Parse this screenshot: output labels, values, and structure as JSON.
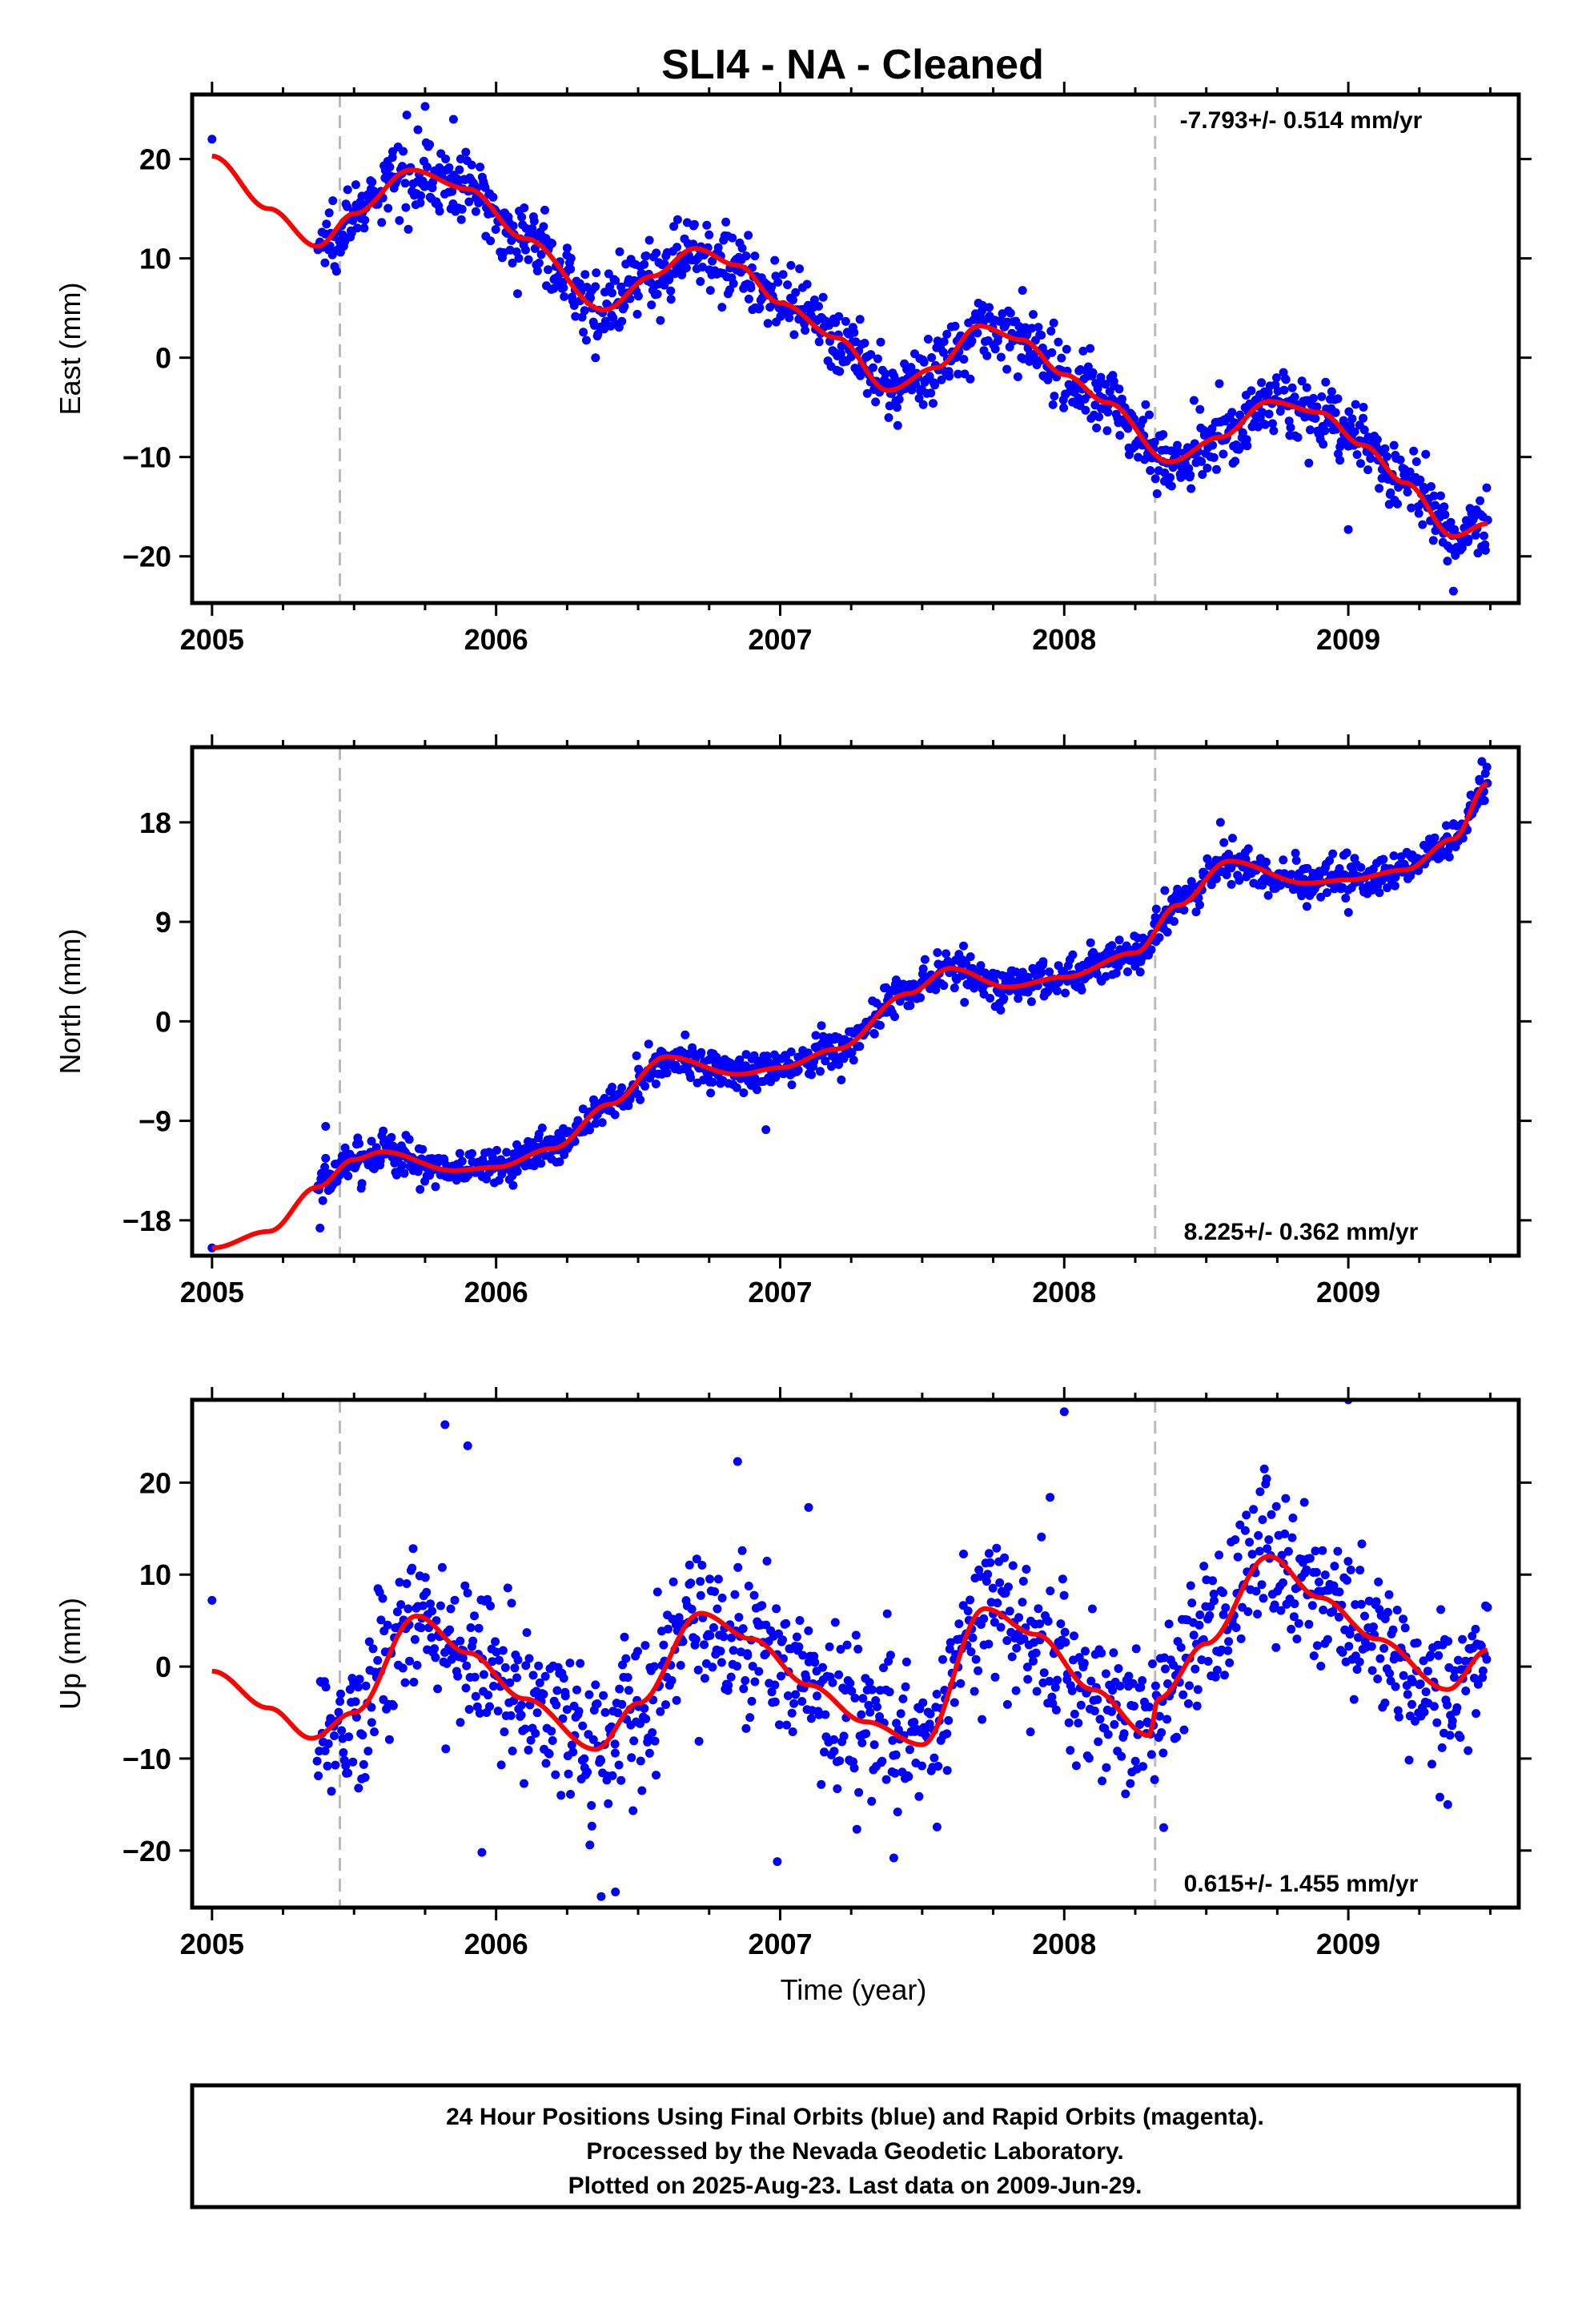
{
  "colors": {
    "points": "#0000ff",
    "model": "#ff0000",
    "event_line": "#bbbbbb",
    "frame": "#000000"
  },
  "footer": {
    "line1": "24 Hour Positions Using Final Orbits (blue) and Rapid Orbits (magenta).",
    "line2": "Processed by the Nevada Geodetic Laboratory.",
    "line3": "Plotted on 2025-Aug-23. Last data on 2009-Jun-29."
  },
  "chart_data": [
    {
      "type": "scatter",
      "title": "SLI4  - NA - Cleaned",
      "ylabel": "East (mm)",
      "xlabel": "",
      "rate_label": "-7.793+/- 0.514 mm/yr",
      "rate_position": "top-right",
      "xlim": [
        2004.93,
        2009.6
      ],
      "ylim": [
        -24.7,
        26.5
      ],
      "xticks": [
        2005,
        2006,
        2007,
        2008,
        2009
      ],
      "xtick_labels": [
        "2005",
        "2006",
        "2007",
        "2008",
        "2009"
      ],
      "yticks": [
        -20,
        -10,
        0,
        10,
        20
      ],
      "ytick_labels": [
        "−20",
        "−10",
        "0",
        "10",
        "20"
      ],
      "event_lines": [
        2005.45,
        2008.32
      ],
      "data_start": 2005.37,
      "data_end": 2009.49,
      "series": [
        {
          "kind": "model",
          "x": [
            2005.0,
            2005.2,
            2005.37,
            2005.5,
            2005.7,
            2005.9,
            2006.1,
            2006.38,
            2006.55,
            2006.7,
            2006.85,
            2007.0,
            2007.2,
            2007.38,
            2007.55,
            2007.7,
            2007.85,
            2008.0,
            2008.15,
            2008.37,
            2008.55,
            2008.72,
            2008.9,
            2009.05,
            2009.2,
            2009.37,
            2009.49
          ],
          "y": [
            20.3,
            15.0,
            11.2,
            14.5,
            18.9,
            17.0,
            12.0,
            4.8,
            8.2,
            11.0,
            9.3,
            5.5,
            2.0,
            -3.3,
            -1.0,
            3.2,
            1.8,
            -1.7,
            -4.5,
            -10.5,
            -8.0,
            -4.4,
            -5.5,
            -8.8,
            -12.6,
            -18.0,
            -16.7
          ]
        },
        {
          "kind": "data",
          "noise": 1.7,
          "n": 1250,
          "outliers": [
            [
              2005.0,
              22.0
            ],
            [
              2005.85,
              24.0
            ],
            [
              2005.75,
              25.3
            ],
            [
              2009.37,
              -23.5
            ],
            [
              2006.35,
              0.0
            ],
            [
              2009.0,
              -17.3
            ]
          ]
        }
      ]
    },
    {
      "type": "scatter",
      "title": "",
      "ylabel": "North (mm)",
      "xlabel": "",
      "rate_label": "8.225+/- 0.362 mm/yr",
      "rate_position": "bottom-right",
      "xlim": [
        2004.93,
        2009.6
      ],
      "ylim": [
        -21.2,
        24.8
      ],
      "xticks": [
        2005,
        2006,
        2007,
        2008,
        2009
      ],
      "xtick_labels": [
        "2005",
        "2006",
        "2007",
        "2008",
        "2009"
      ],
      "yticks": [
        -18,
        -9,
        0,
        9,
        18
      ],
      "ytick_labels": [
        "−18",
        "−9",
        "0",
        "9",
        "18"
      ],
      "event_lines": [
        2005.45,
        2008.32
      ],
      "data_start": 2005.37,
      "data_end": 2009.49,
      "series": [
        {
          "kind": "model",
          "x": [
            2005.0,
            2005.2,
            2005.37,
            2005.5,
            2005.6,
            2005.85,
            2006.0,
            2006.2,
            2006.4,
            2006.6,
            2006.85,
            2007.0,
            2007.2,
            2007.45,
            2007.6,
            2007.8,
            2008.0,
            2008.25,
            2008.4,
            2008.58,
            2008.85,
            2009.0,
            2009.2,
            2009.37,
            2009.49
          ],
          "y": [
            -20.5,
            -19.0,
            -15.0,
            -12.5,
            -11.8,
            -13.5,
            -13.2,
            -11.5,
            -7.5,
            -3.2,
            -4.8,
            -4.2,
            -2.5,
            2.5,
            4.8,
            3.1,
            4.0,
            6.2,
            10.5,
            14.5,
            12.5,
            12.8,
            13.7,
            16.5,
            21.5
          ]
        },
        {
          "kind": "data",
          "noise": 0.9,
          "n": 1250,
          "outliers": [
            [
              2005.0,
              -20.5
            ],
            [
              2005.38,
              -18.7
            ],
            [
              2005.4,
              -9.5
            ],
            [
              2006.95,
              -9.8
            ],
            [
              2009.47,
              23.5
            ],
            [
              2007.3,
              -1.0
            ],
            [
              2008.55,
              18.0
            ]
          ]
        }
      ]
    },
    {
      "type": "scatter",
      "title": "",
      "ylabel": "Up (mm)",
      "xlabel": "Time (year)",
      "rate_label": "0.615+/- 1.455 mm/yr",
      "rate_position": "bottom-right",
      "xlim": [
        2004.93,
        2009.6
      ],
      "ylim": [
        -26.2,
        29.0
      ],
      "xticks": [
        2005,
        2006,
        2007,
        2008,
        2009
      ],
      "xtick_labels": [
        "2005",
        "2006",
        "2007",
        "2008",
        "2009"
      ],
      "yticks": [
        -20,
        -10,
        0,
        10,
        20
      ],
      "ytick_labels": [
        "−20",
        "−10",
        "0",
        "10",
        "20"
      ],
      "event_lines": [
        2005.45,
        2008.32
      ],
      "data_start": 2005.37,
      "data_end": 2009.49,
      "series": [
        {
          "kind": "model",
          "x": [
            2005.0,
            2005.2,
            2005.35,
            2005.5,
            2005.72,
            2005.9,
            2006.1,
            2006.35,
            2006.5,
            2006.72,
            2006.9,
            2007.1,
            2007.3,
            2007.5,
            2007.72,
            2007.9,
            2008.1,
            2008.3,
            2008.33,
            2008.5,
            2008.72,
            2008.9,
            2009.1,
            2009.35,
            2009.49
          ],
          "y": [
            -0.5,
            -4.5,
            -7.8,
            -5.0,
            5.5,
            1.5,
            -3.5,
            -9.0,
            -4.0,
            5.8,
            3.0,
            -2.0,
            -6.0,
            -8.5,
            6.3,
            3.5,
            -2.5,
            -7.5,
            -3.5,
            2.5,
            12.0,
            7.5,
            3.0,
            -2.5,
            1.8
          ]
        },
        {
          "kind": "data",
          "noise": 4.2,
          "n": 1150,
          "outliers": [
            [
              2005.0,
              7.2
            ],
            [
              2005.82,
              26.3
            ],
            [
              2005.9,
              24.0
            ],
            [
              2006.85,
              22.3
            ],
            [
              2008.0,
              27.7
            ],
            [
              2009.0,
              29.0
            ],
            [
              2006.37,
              -25.0
            ],
            [
              2006.42,
              -24.5
            ],
            [
              2005.95,
              -20.2
            ],
            [
              2006.99,
              -21.2
            ],
            [
              2007.4,
              -20.8
            ],
            [
              2008.35,
              -17.5
            ],
            [
              2009.35,
              -15.0
            ],
            [
              2007.95,
              18.4
            ],
            [
              2007.1,
              17.3
            ]
          ]
        }
      ]
    }
  ]
}
